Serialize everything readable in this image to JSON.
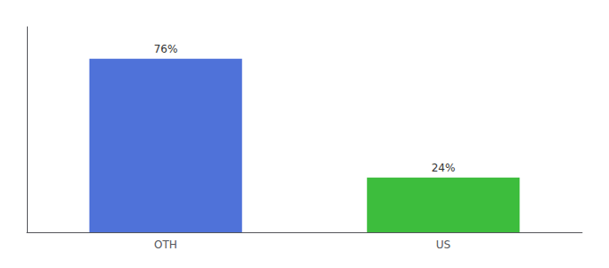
{
  "chart_data": {
    "type": "bar",
    "categories": [
      "OTH",
      "US"
    ],
    "values": [
      76,
      24
    ],
    "value_labels": [
      "76%",
      "24%"
    ],
    "data_labels": true,
    "colors": [
      "#4f72d9",
      "#3dbd3d"
    ],
    "ylim": [
      0,
      90
    ],
    "grid": false,
    "tick_labels": "x"
  }
}
